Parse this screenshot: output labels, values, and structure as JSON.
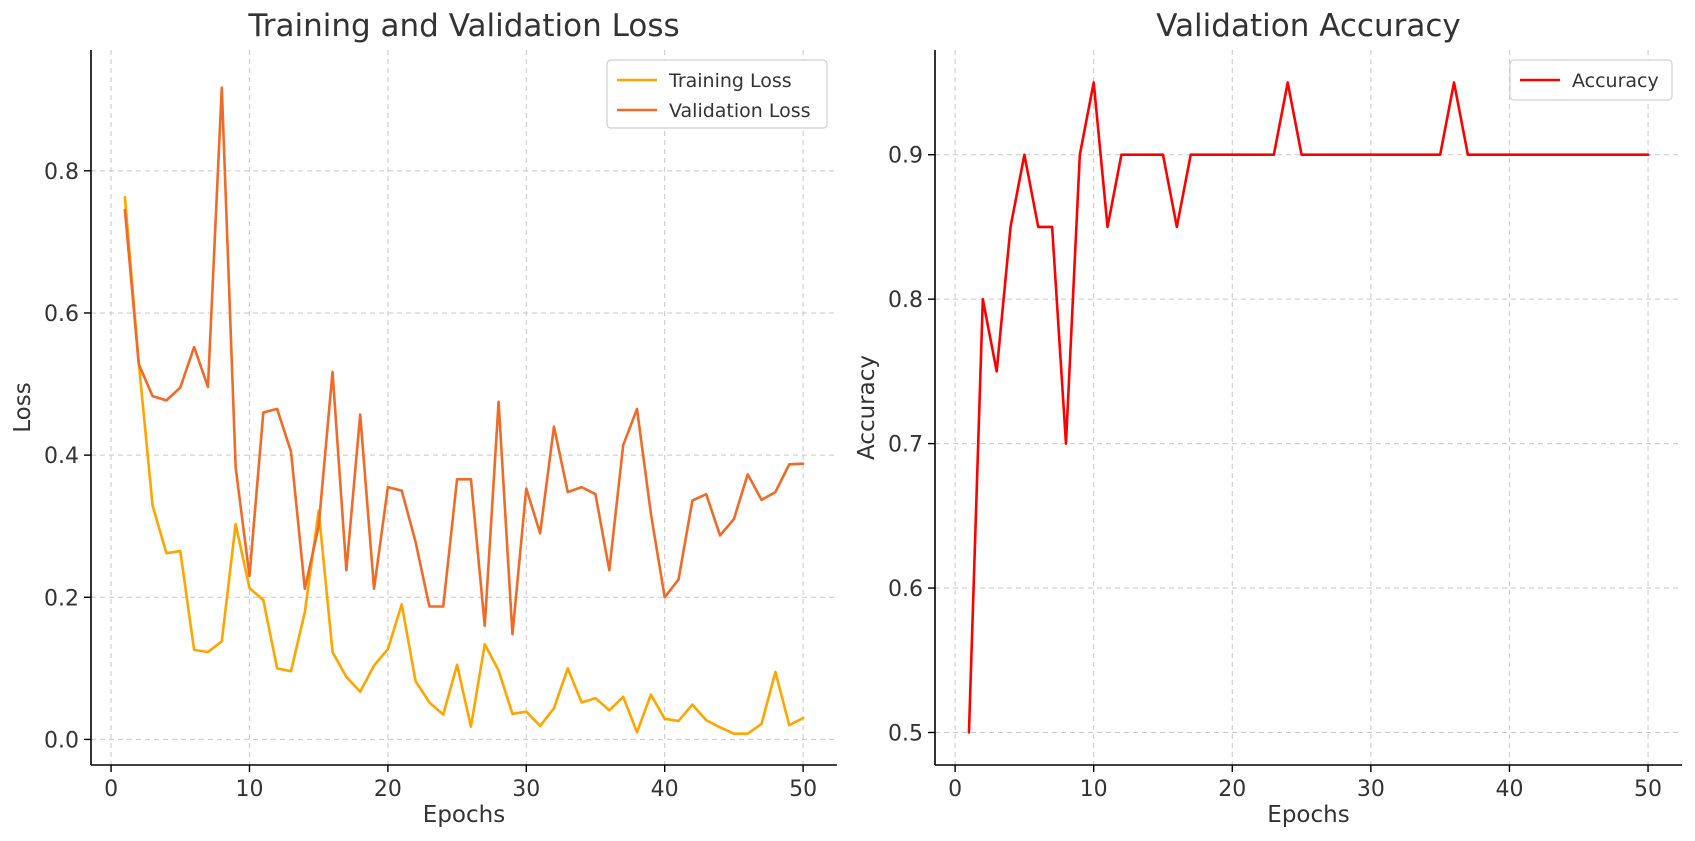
{
  "chart_data": [
    {
      "type": "line",
      "title": "Training and Validation Loss",
      "xlabel": "Epochs",
      "ylabel": "Loss",
      "xlim": [
        -1.45,
        52.45
      ],
      "ylim": [
        -0.036,
        0.97
      ],
      "xticks": [
        0,
        10,
        20,
        30,
        40,
        50
      ],
      "yticks": [
        0.0,
        0.2,
        0.4,
        0.6,
        0.8
      ],
      "ytick_decimals": 1,
      "grid": true,
      "legend_position": "top-right",
      "x": [
        1,
        2,
        3,
        4,
        5,
        6,
        7,
        8,
        9,
        10,
        11,
        12,
        13,
        14,
        15,
        16,
        17,
        18,
        19,
        20,
        21,
        22,
        23,
        24,
        25,
        26,
        27,
        28,
        29,
        30,
        31,
        32,
        33,
        34,
        35,
        36,
        37,
        38,
        39,
        40,
        41,
        42,
        43,
        44,
        45,
        46,
        47,
        48,
        49,
        50
      ],
      "series": [
        {
          "name": "Training Loss",
          "color": "#FFA500",
          "values": [
            0.763,
            0.53,
            0.329,
            0.262,
            0.265,
            0.126,
            0.123,
            0.138,
            0.303,
            0.213,
            0.196,
            0.1,
            0.096,
            0.179,
            0.322,
            0.123,
            0.088,
            0.067,
            0.104,
            0.127,
            0.19,
            0.082,
            0.052,
            0.035,
            0.105,
            0.018,
            0.134,
            0.097,
            0.036,
            0.039,
            0.019,
            0.044,
            0.1,
            0.052,
            0.058,
            0.041,
            0.06,
            0.01,
            0.063,
            0.029,
            0.026,
            0.049,
            0.027,
            0.017,
            0.008,
            0.008,
            0.022,
            0.095,
            0.02,
            0.03
          ]
        },
        {
          "name": "Validation Loss",
          "color": "#F06A28",
          "values": [
            0.745,
            0.528,
            0.483,
            0.477,
            0.495,
            0.552,
            0.496,
            0.917,
            0.383,
            0.23,
            0.46,
            0.465,
            0.405,
            0.212,
            0.3,
            0.517,
            0.238,
            0.457,
            0.212,
            0.355,
            0.35,
            0.278,
            0.187,
            0.187,
            0.366,
            0.366,
            0.16,
            0.475,
            0.148,
            0.353,
            0.29,
            0.44,
            0.348,
            0.355,
            0.345,
            0.238,
            0.414,
            0.465,
            0.318,
            0.2,
            0.225,
            0.336,
            0.345,
            0.287,
            0.31,
            0.373,
            0.337,
            0.348,
            0.387,
            0.388
          ]
        }
      ]
    },
    {
      "type": "line",
      "title": "Validation Accuracy",
      "xlabel": "Epochs",
      "ylabel": "Accuracy",
      "xlim": [
        -1.45,
        52.45
      ],
      "ylim": [
        0.4775,
        0.9725
      ],
      "xticks": [
        0,
        10,
        20,
        30,
        40,
        50
      ],
      "yticks": [
        0.5,
        0.6,
        0.7,
        0.8,
        0.9
      ],
      "ytick_decimals": 1,
      "grid": true,
      "legend_position": "top-right",
      "x": [
        1,
        2,
        3,
        4,
        5,
        6,
        7,
        8,
        9,
        10,
        11,
        12,
        13,
        14,
        15,
        16,
        17,
        18,
        19,
        20,
        21,
        22,
        23,
        24,
        25,
        26,
        27,
        28,
        29,
        30,
        31,
        32,
        33,
        34,
        35,
        36,
        37,
        38,
        39,
        40,
        41,
        42,
        43,
        44,
        45,
        46,
        47,
        48,
        49,
        50
      ],
      "series": [
        {
          "name": "Accuracy",
          "color": "#FF0000",
          "values": [
            0.5,
            0.8,
            0.75,
            0.85,
            0.9,
            0.85,
            0.85,
            0.7,
            0.9,
            0.95,
            0.85,
            0.9,
            0.9,
            0.9,
            0.9,
            0.85,
            0.9,
            0.9,
            0.9,
            0.9,
            0.9,
            0.9,
            0.9,
            0.95,
            0.9,
            0.9,
            0.9,
            0.9,
            0.9,
            0.9,
            0.9,
            0.9,
            0.9,
            0.9,
            0.9,
            0.95,
            0.9,
            0.9,
            0.9,
            0.9,
            0.9,
            0.9,
            0.9,
            0.9,
            0.9,
            0.9,
            0.9,
            0.9,
            0.9,
            0.9
          ]
        }
      ]
    }
  ]
}
